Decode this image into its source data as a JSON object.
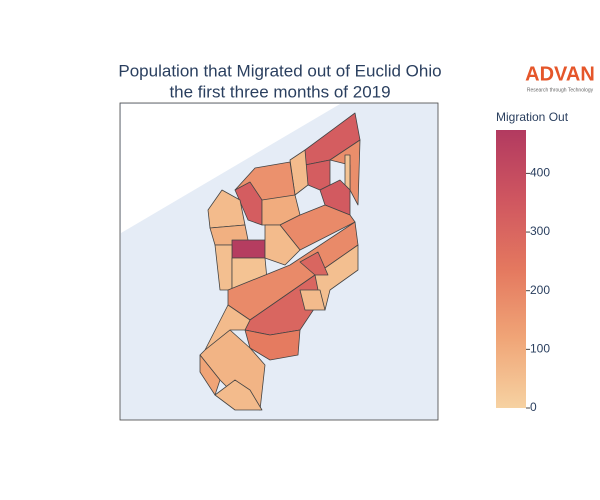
{
  "chart_data": {
    "type": "choropleth",
    "title": "Population that Migrated out of Euclid Ohio",
    "subtitle": "the first three months of 2019",
    "logo": "ADVAN",
    "logo_tagline": "Research through Technology",
    "colorbar_title": "Migration Out",
    "zlim": [
      0,
      474
    ],
    "zticks": [
      0,
      100,
      200,
      300,
      400
    ],
    "colorscale": [
      "#f6d2a2",
      "#f0a577",
      "#e4785f",
      "#cf5660",
      "#b23a60"
    ],
    "values": [
      330,
      180,
      40,
      330,
      340,
      60,
      170,
      330,
      60,
      100,
      190,
      90,
      460,
      50,
      60,
      40,
      190,
      50,
      300,
      300,
      230,
      60,
      80,
      120,
      60,
      60
    ]
  }
}
